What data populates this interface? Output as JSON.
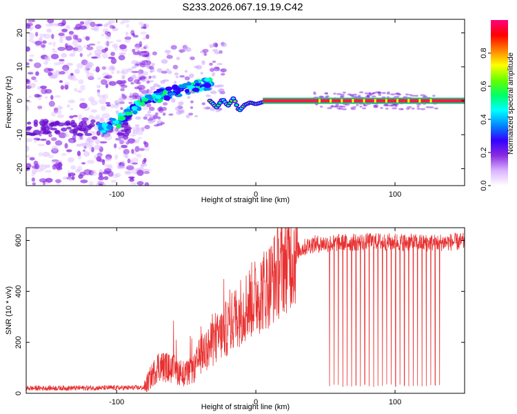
{
  "title": "S233.2026.067.19.19.C42",
  "chart_data": [
    {
      "type": "heatmap",
      "name": "spectrogram",
      "xlabel": "Height of straight line (km)",
      "ylabel": "Frequency (Hz)",
      "xlim": [
        -165,
        150
      ],
      "ylim": [
        -25,
        24
      ],
      "xticks": [
        -100,
        0,
        100
      ],
      "yticks": [
        -20,
        -10,
        0,
        10,
        20
      ],
      "grid": false,
      "colorbar": {
        "label": "Normalized spectral amplitude",
        "range": [
          0.0,
          1.0
        ],
        "ticks": [
          0.0,
          0.2,
          0.4,
          0.6,
          0.8
        ],
        "colors": [
          "#ffffff",
          "#d9b3ff",
          "#8a2be2",
          "#3300ff",
          "#0088ff",
          "#00ffff",
          "#00ff66",
          "#66ff00",
          "#ffff00",
          "#ff8000",
          "#ff0000",
          "#ff0080"
        ]
      },
      "features": {
        "noise_region_km": [
          -165,
          -85
        ],
        "rising_branch": {
          "x": [
            -110,
            -100,
            -90,
            -80,
            -70,
            -60,
            -50,
            -40,
            -33
          ],
          "y": [
            -8,
            -6.5,
            -3,
            0,
            1.5,
            2.5,
            3.5,
            4.5,
            5
          ]
        },
        "dip_after": {
          "x": [
            -33,
            -28,
            -24,
            -20,
            -16,
            -12,
            -8,
            -4,
            0,
            5,
            10,
            15
          ],
          "y": [
            0,
            -2,
            0.5,
            -1.5,
            0.8,
            -3,
            -1.2,
            -0.5,
            -1,
            -0.4,
            0,
            0
          ]
        },
        "carrier": {
          "x": [
            5,
            150
          ],
          "y": 0,
          "amplitude": 0.95
        }
      }
    },
    {
      "type": "line",
      "name": "snr",
      "xlabel": "Height of straight line (km)",
      "ylabel": "SNR (10 * v/v)",
      "xlim": [
        -165,
        150
      ],
      "ylim": [
        0,
        650
      ],
      "xticks": [
        -100,
        0,
        100
      ],
      "yticks": [
        0,
        200,
        400,
        600
      ],
      "grid": false,
      "color": "#e83030",
      "profile": {
        "x": [
          -165,
          -80,
          -78,
          -70,
          -60,
          -50,
          -44,
          -40,
          -30,
          -20,
          -10,
          0,
          10,
          20,
          30,
          40,
          60,
          80,
          100,
          120,
          150
        ],
        "y": [
          20,
          22,
          40,
          110,
          95,
          75,
          95,
          150,
          200,
          260,
          330,
          380,
          430,
          510,
          560,
          585,
          590,
          595,
          595,
          590,
          595
        ]
      },
      "dropouts": {
        "x_range": [
          53,
          132
        ],
        "count": 26,
        "floor": 25
      }
    }
  ]
}
